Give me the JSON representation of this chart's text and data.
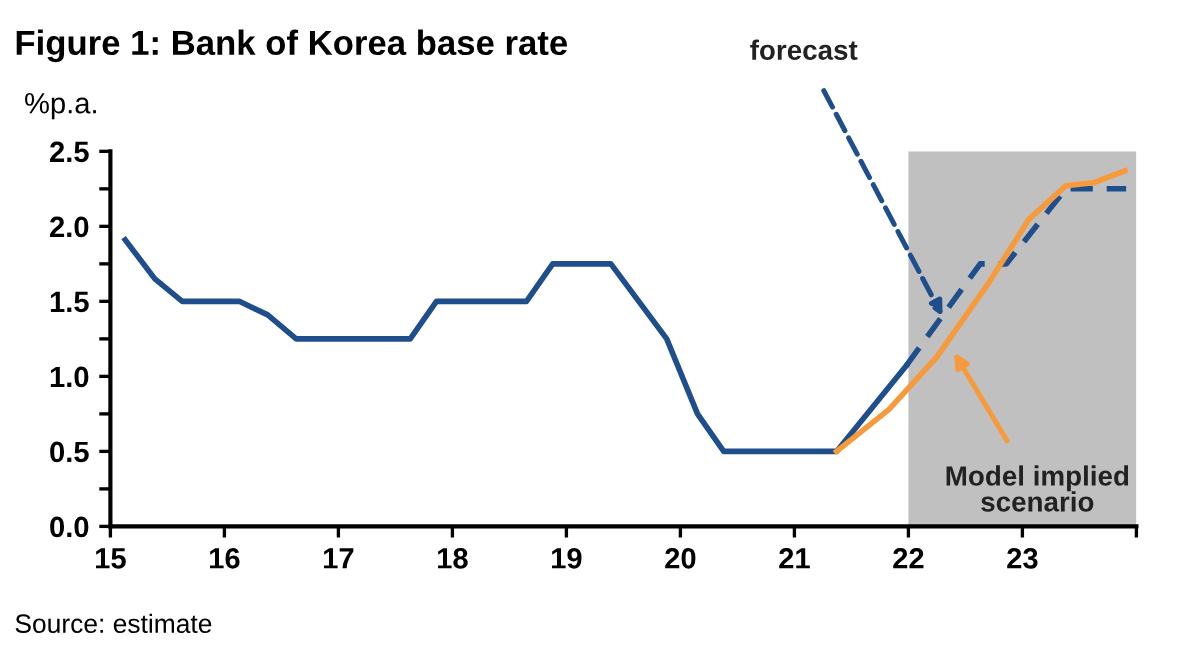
{
  "chart_data": {
    "type": "line",
    "title": "Figure 1: Bank of Korea base rate",
    "ylabel": "%p.a.",
    "series": [
      {
        "color": "#1f4e8c",
        "line_style": "solid",
        "x": [
          15.13,
          15.39,
          15.63,
          16.13,
          16.38,
          16.63,
          17.63,
          17.86,
          18.65,
          18.88,
          19.39,
          19.88,
          20.15,
          20.38,
          21.37,
          21.98
        ],
        "values": [
          1.91,
          1.65,
          1.5,
          1.5,
          1.41,
          1.25,
          1.25,
          1.5,
          1.5,
          1.75,
          1.75,
          1.25,
          0.75,
          0.5,
          0.5,
          1.07
        ]
      },
      {
        "color": "#1f4e8c",
        "line_style": "dashed",
        "x": [
          21.98,
          22.63,
          22.86,
          23.38,
          23.91
        ],
        "values": [
          1.07,
          1.75,
          1.75,
          2.25,
          2.25
        ]
      },
      {
        "color": "#f79a3c",
        "line_style": "solid",
        "x": [
          21.37,
          21.83,
          22.25,
          22.71,
          23.06,
          23.38,
          23.62,
          23.9
        ],
        "values": [
          0.5,
          0.78,
          1.13,
          1.63,
          2.05,
          2.27,
          2.29,
          2.37
        ]
      }
    ],
    "bands": [
      {
        "axis": "x",
        "from": 22,
        "to": 24,
        "color": "#c0c0c0"
      }
    ],
    "annotations": [
      {
        "text": "forecast",
        "x": 22.3,
        "y": 1.4
      },
      {
        "text": "Model implied\nscenario",
        "x": 22.4,
        "y": 1.16
      },
      "Source: estimate"
    ],
    "xlim": [
      15,
      24
    ],
    "xticks": [
      15,
      16,
      17,
      18,
      19,
      20,
      21,
      22,
      23,
      {
        "value": 24,
        "label": null
      }
    ],
    "ylim": [
      0,
      2.5
    ],
    "yticks": [
      {
        "value": 0,
        "label": "0.0"
      },
      {
        "value": 0.25,
        "label": null
      },
      {
        "value": 0.5,
        "label": "0.5"
      },
      {
        "value": 0.75,
        "label": null
      },
      {
        "value": 1.0,
        "label": "1.0"
      },
      {
        "value": 1.25,
        "label": null
      },
      {
        "value": 1.5,
        "label": "1.5"
      },
      {
        "value": 1.75,
        "label": null
      },
      {
        "value": 2.0,
        "label": "2.0"
      },
      {
        "value": 2.25,
        "label": null
      },
      {
        "value": 2.5,
        "label": "2.5"
      }
    ],
    "grid": false,
    "legend": false
  }
}
